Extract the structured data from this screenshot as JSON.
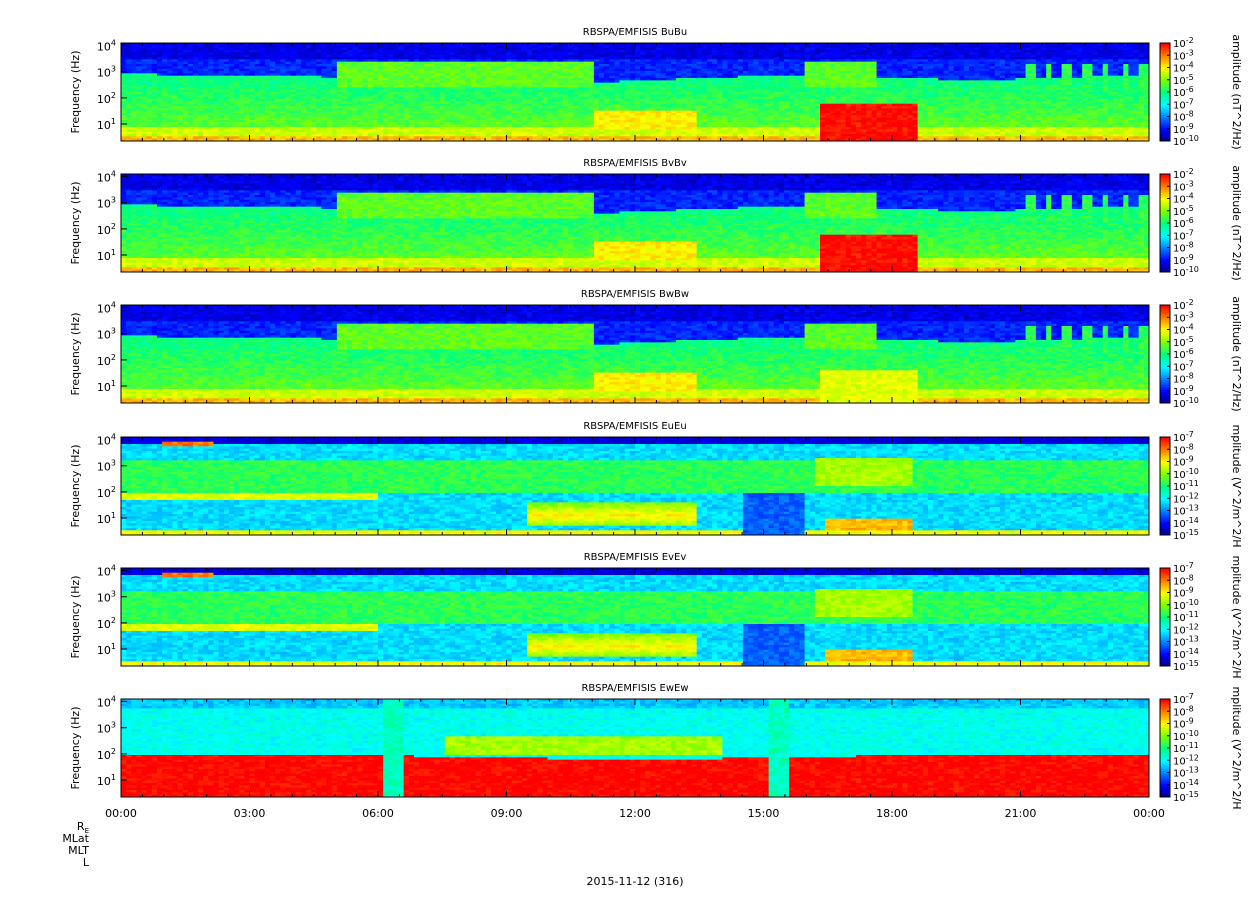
{
  "chart_data": {
    "type": "heatmap",
    "figure": {
      "date_label": "2015-11-12 (316)",
      "ephemeris_rows": [
        "R",
        "MLat",
        "MLT",
        "L"
      ],
      "ephemeris_subscript": "E",
      "x_ticks": [
        "00:00",
        "03:00",
        "06:00",
        "09:00",
        "12:00",
        "15:00",
        "18:00",
        "21:00",
        "00:00"
      ],
      "x_range_hours": [
        0,
        24
      ]
    },
    "panels": [
      {
        "title": "RBSPA/EMFISIS  BuBu",
        "ylabel": "Frequency (Hz)",
        "y_ticks": [
          {
            "base": "10",
            "exp": "1"
          },
          {
            "base": "10",
            "exp": "2"
          },
          {
            "base": "10",
            "exp": "3"
          },
          {
            "base": "10",
            "exp": "4"
          }
        ],
        "y_range_log10": [
          0.35,
          4.1
        ],
        "colorbar_label": "amplitude (nT^2/Hz)",
        "colorbar_ticks": [
          {
            "base": "10",
            "exp": "-2"
          },
          {
            "base": "10",
            "exp": "-3"
          },
          {
            "base": "10",
            "exp": "-4"
          },
          {
            "base": "10",
            "exp": "-5"
          },
          {
            "base": "10",
            "exp": "-6"
          },
          {
            "base": "10",
            "exp": "-7"
          },
          {
            "base": "10",
            "exp": "-8"
          },
          {
            "base": "10",
            "exp": "-9"
          },
          {
            "base": "10",
            "exp": "-10"
          }
        ],
        "colorbar_range_log10": [
          -10,
          -2
        ],
        "kind": "B"
      },
      {
        "title": "RBSPA/EMFISIS  BvBv",
        "ylabel": "Frequency (Hz)",
        "y_ticks": [
          {
            "base": "10",
            "exp": "1"
          },
          {
            "base": "10",
            "exp": "2"
          },
          {
            "base": "10",
            "exp": "3"
          },
          {
            "base": "10",
            "exp": "4"
          }
        ],
        "y_range_log10": [
          0.35,
          4.1
        ],
        "colorbar_label": "amplitude (nT^2/Hz)",
        "colorbar_ticks": [
          {
            "base": "10",
            "exp": "-2"
          },
          {
            "base": "10",
            "exp": "-3"
          },
          {
            "base": "10",
            "exp": "-4"
          },
          {
            "base": "10",
            "exp": "-5"
          },
          {
            "base": "10",
            "exp": "-6"
          },
          {
            "base": "10",
            "exp": "-7"
          },
          {
            "base": "10",
            "exp": "-8"
          },
          {
            "base": "10",
            "exp": "-9"
          },
          {
            "base": "10",
            "exp": "-10"
          }
        ],
        "colorbar_range_log10": [
          -10,
          -2
        ],
        "kind": "B"
      },
      {
        "title": "RBSPA/EMFISIS  BwBw",
        "ylabel": "Frequency (Hz)",
        "y_ticks": [
          {
            "base": "10",
            "exp": "1"
          },
          {
            "base": "10",
            "exp": "2"
          },
          {
            "base": "10",
            "exp": "3"
          },
          {
            "base": "10",
            "exp": "4"
          }
        ],
        "y_range_log10": [
          0.35,
          4.1
        ],
        "colorbar_label": "amplitude (nT^2/Hz)",
        "colorbar_ticks": [
          {
            "base": "10",
            "exp": "-2"
          },
          {
            "base": "10",
            "exp": "-3"
          },
          {
            "base": "10",
            "exp": "-4"
          },
          {
            "base": "10",
            "exp": "-5"
          },
          {
            "base": "10",
            "exp": "-6"
          },
          {
            "base": "10",
            "exp": "-7"
          },
          {
            "base": "10",
            "exp": "-8"
          },
          {
            "base": "10",
            "exp": "-9"
          },
          {
            "base": "10",
            "exp": "-10"
          }
        ],
        "colorbar_range_log10": [
          -10,
          -2
        ],
        "kind": "Bw"
      },
      {
        "title": "RBSPA/EMFISIS  EuEu",
        "ylabel": "Frequency (Hz)",
        "y_ticks": [
          {
            "base": "10",
            "exp": "1"
          },
          {
            "base": "10",
            "exp": "2"
          },
          {
            "base": "10",
            "exp": "3"
          },
          {
            "base": "10",
            "exp": "4"
          }
        ],
        "y_range_log10": [
          0.35,
          4.1
        ],
        "colorbar_label": "mplitude (V^2/m^2/H",
        "colorbar_ticks": [
          {
            "base": "10",
            "exp": "-7"
          },
          {
            "base": "10",
            "exp": "-8"
          },
          {
            "base": "10",
            "exp": "-9"
          },
          {
            "base": "10",
            "exp": "-10"
          },
          {
            "base": "10",
            "exp": "-11"
          },
          {
            "base": "10",
            "exp": "-12"
          },
          {
            "base": "10",
            "exp": "-13"
          },
          {
            "base": "10",
            "exp": "-14"
          },
          {
            "base": "10",
            "exp": "-15"
          }
        ],
        "colorbar_range_log10": [
          -15,
          -7
        ],
        "kind": "E"
      },
      {
        "title": "RBSPA/EMFISIS  EvEv",
        "ylabel": "Frequency (Hz)",
        "y_ticks": [
          {
            "base": "10",
            "exp": "1"
          },
          {
            "base": "10",
            "exp": "2"
          },
          {
            "base": "10",
            "exp": "3"
          },
          {
            "base": "10",
            "exp": "4"
          }
        ],
        "y_range_log10": [
          0.35,
          4.1
        ],
        "colorbar_label": "mplitude (V^2/m^2/H",
        "colorbar_ticks": [
          {
            "base": "10",
            "exp": "-7"
          },
          {
            "base": "10",
            "exp": "-8"
          },
          {
            "base": "10",
            "exp": "-9"
          },
          {
            "base": "10",
            "exp": "-10"
          },
          {
            "base": "10",
            "exp": "-11"
          },
          {
            "base": "10",
            "exp": "-12"
          },
          {
            "base": "10",
            "exp": "-13"
          },
          {
            "base": "10",
            "exp": "-14"
          },
          {
            "base": "10",
            "exp": "-15"
          }
        ],
        "colorbar_range_log10": [
          -15,
          -7
        ],
        "kind": "E"
      },
      {
        "title": "RBSPA/EMFISIS  EwEw",
        "ylabel": "Frequency (Hz)",
        "y_ticks": [
          {
            "base": "10",
            "exp": "1"
          },
          {
            "base": "10",
            "exp": "2"
          },
          {
            "base": "10",
            "exp": "3"
          },
          {
            "base": "10",
            "exp": "4"
          }
        ],
        "y_range_log10": [
          0.35,
          4.1
        ],
        "colorbar_label": "mplitude (V^2/m^2/H",
        "colorbar_ticks": [
          {
            "base": "10",
            "exp": "-7"
          },
          {
            "base": "10",
            "exp": "-8"
          },
          {
            "base": "10",
            "exp": "-9"
          },
          {
            "base": "10",
            "exp": "-10"
          },
          {
            "base": "10",
            "exp": "-11"
          },
          {
            "base": "10",
            "exp": "-12"
          },
          {
            "base": "10",
            "exp": "-13"
          },
          {
            "base": "10",
            "exp": "-14"
          },
          {
            "base": "10",
            "exp": "-15"
          }
        ],
        "colorbar_range_log10": [
          -15,
          -7
        ],
        "kind": "Ew"
      }
    ],
    "colormap": [
      "#000080",
      "#0000ff",
      "#0080ff",
      "#00ffff",
      "#00ff80",
      "#80ff00",
      "#ffff00",
      "#ff8000",
      "#ff0000"
    ]
  }
}
